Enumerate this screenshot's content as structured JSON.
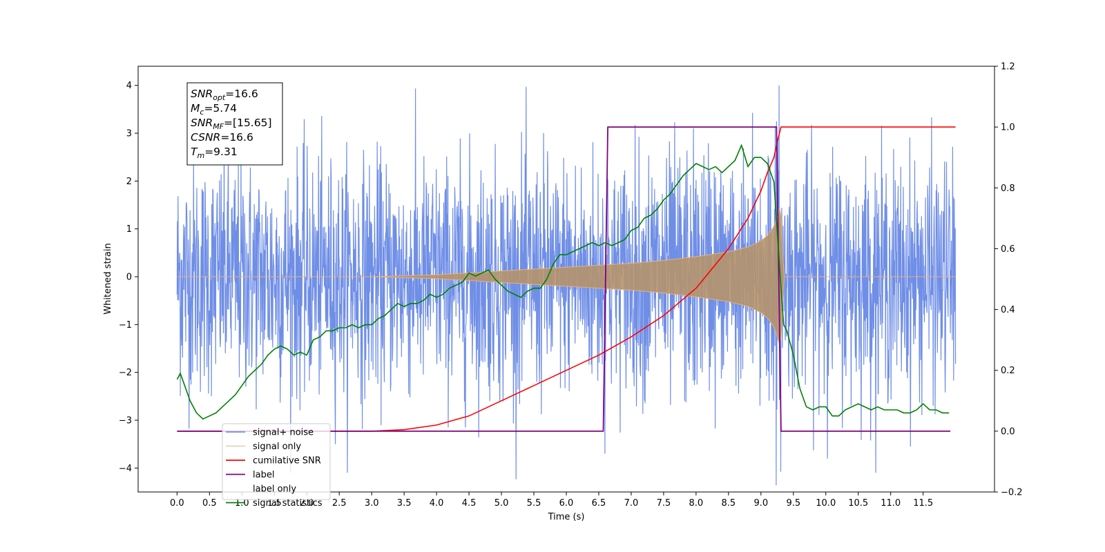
{
  "chart_data": {
    "type": "line",
    "title": "",
    "xlabel": "Time (s)",
    "ylabel": "Whitened strain",
    "y2label": "",
    "xlim": [
      -0.6,
      12.6
    ],
    "ylim": [
      -4.5,
      4.4
    ],
    "y2lim": [
      -0.2,
      1.2
    ],
    "x_ticks": [
      0.0,
      0.5,
      1.0,
      1.5,
      2.0,
      2.5,
      3.0,
      3.5,
      4.0,
      4.5,
      5.0,
      5.5,
      6.0,
      6.5,
      7.0,
      7.5,
      8.0,
      8.5,
      9.0,
      9.5,
      10.0,
      10.5,
      11.0,
      11.5
    ],
    "x_tick_labels": [
      "0.0",
      "0.5",
      "1.0",
      "1.5",
      "2.0",
      "2.5",
      "3.0",
      "3.5",
      "4.0",
      "4.5",
      "5.0",
      "5.5",
      "6.0",
      "6.5",
      "7.0",
      "7.5",
      "8.0",
      "8.5",
      "9.0",
      "9.5",
      "10.0",
      "10.5",
      "11.0",
      "11.5"
    ],
    "y_ticks": [
      -4,
      -3,
      -2,
      -1,
      0,
      1,
      2,
      3,
      4
    ],
    "y_tick_labels": [
      "−4",
      "−3",
      "−2",
      "−1",
      "0",
      "1",
      "2",
      "3",
      "4"
    ],
    "y2_ticks": [
      -0.2,
      0.0,
      0.2,
      0.4,
      0.6,
      0.8,
      1.0,
      1.2
    ],
    "y2_tick_labels": [
      "−0.2",
      "0.0",
      "0.2",
      "0.4",
      "0.6",
      "0.8",
      "1.0",
      "1.2"
    ],
    "grid": false,
    "legend_position": "lower-left",
    "annotation_box": {
      "position": "top-left",
      "lines": [
        {
          "sym": "SNR",
          "sub": "opt",
          "value": "=16.6"
        },
        {
          "sym": "M",
          "sub": "c",
          "value": "=5.74"
        },
        {
          "sym": "SNR",
          "sub": "MF",
          "value": "=[15.65]"
        },
        {
          "sym": "CSNR",
          "sub": "",
          "value": "=16.6"
        },
        {
          "sym": "T",
          "sub": "m",
          "value": "=9.31"
        }
      ]
    },
    "series": [
      {
        "name": "signal+ noise",
        "color": "#6f8ee6",
        "axis": "left",
        "kind": "noise_plus_chirp",
        "x_range": [
          0.0,
          12.0
        ],
        "noise_typical_range": [
          -2.2,
          2.2
        ],
        "noise_extremes": [
          -4.1,
          4.0
        ],
        "merger_time": 9.31
      },
      {
        "name": "signal only",
        "color": "#c49a6c",
        "axis": "left",
        "kind": "chirp_envelope",
        "x": [
          0.0,
          3.0,
          4.0,
          5.0,
          6.0,
          6.5,
          7.0,
          7.5,
          8.0,
          8.5,
          8.8,
          9.0,
          9.1,
          9.2,
          9.25,
          9.3,
          9.31,
          9.35,
          12.0
        ],
        "amplitude": [
          0.0,
          0.0,
          0.04,
          0.12,
          0.2,
          0.24,
          0.28,
          0.34,
          0.42,
          0.52,
          0.62,
          0.75,
          0.86,
          1.05,
          1.25,
          1.5,
          1.3,
          0.0,
          0.0
        ]
      },
      {
        "name": "cumilative SNR",
        "color": "#ff0000",
        "axis": "right",
        "x": [
          0.0,
          3.0,
          3.5,
          4.0,
          4.5,
          5.0,
          5.5,
          6.0,
          6.5,
          7.0,
          7.5,
          8.0,
          8.5,
          8.8,
          9.0,
          9.1,
          9.2,
          9.25,
          9.31,
          9.35,
          12.0
        ],
        "values": [
          0.0,
          0.0,
          0.005,
          0.02,
          0.05,
          0.1,
          0.15,
          0.2,
          0.25,
          0.31,
          0.38,
          0.47,
          0.6,
          0.7,
          0.79,
          0.85,
          0.9,
          0.95,
          1.0,
          1.0,
          1.0
        ]
      },
      {
        "name": "label",
        "color": "#800080",
        "axis": "right",
        "x": [
          0.0,
          6.57,
          6.64,
          9.24,
          9.31,
          11.92
        ],
        "values": [
          0.0,
          0.0,
          1.0,
          1.0,
          0.0,
          0.0
        ]
      },
      {
        "name": "label only",
        "color": "#ffffff",
        "axis": "right",
        "x": [],
        "values": []
      },
      {
        "name": "signal statistics",
        "color": "#008000",
        "axis": "right",
        "x": [
          0.0,
          0.05,
          0.1,
          0.2,
          0.3,
          0.4,
          0.5,
          0.6,
          0.7,
          0.8,
          0.9,
          1.0,
          1.1,
          1.2,
          1.3,
          1.4,
          1.5,
          1.6,
          1.7,
          1.8,
          1.9,
          2.0,
          2.1,
          2.2,
          2.3,
          2.4,
          2.5,
          2.6,
          2.7,
          2.8,
          2.9,
          3.0,
          3.1,
          3.2,
          3.3,
          3.4,
          3.5,
          3.6,
          3.7,
          3.8,
          3.9,
          4.0,
          4.1,
          4.2,
          4.3,
          4.4,
          4.5,
          4.6,
          4.7,
          4.8,
          4.9,
          5.0,
          5.1,
          5.2,
          5.3,
          5.4,
          5.5,
          5.6,
          5.7,
          5.8,
          5.9,
          6.0,
          6.1,
          6.2,
          6.3,
          6.4,
          6.5,
          6.6,
          6.7,
          6.8,
          6.9,
          7.0,
          7.1,
          7.2,
          7.3,
          7.4,
          7.5,
          7.6,
          7.7,
          7.8,
          7.9,
          8.0,
          8.1,
          8.2,
          8.3,
          8.4,
          8.5,
          8.6,
          8.7,
          8.8,
          8.9,
          9.0,
          9.1,
          9.2,
          9.3,
          9.35,
          9.4,
          9.5,
          9.6,
          9.7,
          9.8,
          9.9,
          10.0,
          10.1,
          10.2,
          10.3,
          10.4,
          10.5,
          10.6,
          10.7,
          10.8,
          10.9,
          11.0,
          11.1,
          11.2,
          11.3,
          11.4,
          11.5,
          11.6,
          11.7,
          11.8,
          11.9
        ],
        "values": [
          0.17,
          0.19,
          0.16,
          0.1,
          0.06,
          0.04,
          0.05,
          0.06,
          0.08,
          0.1,
          0.12,
          0.15,
          0.18,
          0.2,
          0.22,
          0.25,
          0.27,
          0.28,
          0.27,
          0.25,
          0.26,
          0.25,
          0.3,
          0.31,
          0.33,
          0.33,
          0.34,
          0.34,
          0.35,
          0.34,
          0.35,
          0.35,
          0.37,
          0.38,
          0.4,
          0.42,
          0.41,
          0.42,
          0.42,
          0.43,
          0.45,
          0.44,
          0.45,
          0.47,
          0.48,
          0.49,
          0.52,
          0.51,
          0.52,
          0.53,
          0.5,
          0.48,
          0.46,
          0.45,
          0.44,
          0.46,
          0.47,
          0.47,
          0.5,
          0.55,
          0.58,
          0.58,
          0.59,
          0.6,
          0.61,
          0.62,
          0.61,
          0.62,
          0.61,
          0.62,
          0.63,
          0.66,
          0.67,
          0.7,
          0.71,
          0.73,
          0.76,
          0.78,
          0.81,
          0.84,
          0.86,
          0.88,
          0.87,
          0.86,
          0.87,
          0.85,
          0.87,
          0.89,
          0.94,
          0.87,
          0.9,
          0.9,
          0.88,
          0.82,
          0.5,
          0.35,
          0.33,
          0.25,
          0.14,
          0.08,
          0.07,
          0.08,
          0.08,
          0.05,
          0.05,
          0.07,
          0.08,
          0.09,
          0.08,
          0.07,
          0.08,
          0.07,
          0.07,
          0.07,
          0.06,
          0.06,
          0.07,
          0.09,
          0.07,
          0.07,
          0.06,
          0.06
        ]
      }
    ]
  }
}
